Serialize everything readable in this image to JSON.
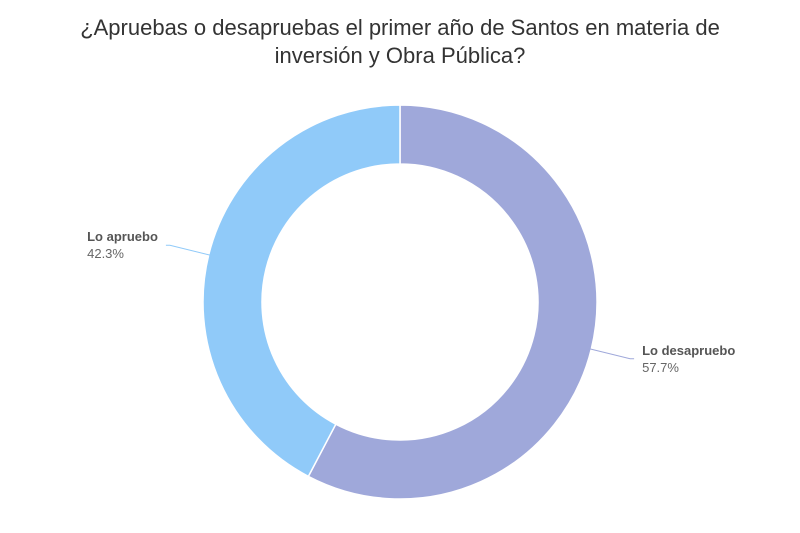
{
  "chart_data": {
    "type": "pie",
    "variant": "donut",
    "title_lines": [
      "¿Apruebas o desapruebas el primer año de Santos en materia de",
      "inversión y Obra Pública?"
    ],
    "slices": [
      {
        "label": "Lo desapruebo",
        "value": 57.7,
        "value_label": "57.7%",
        "color": "#9fa8da"
      },
      {
        "label": "Lo apruebo",
        "value": 42.3,
        "value_label": "42.3%",
        "color": "#90caf9"
      }
    ],
    "start_angle": "top",
    "direction": "clockwise"
  }
}
